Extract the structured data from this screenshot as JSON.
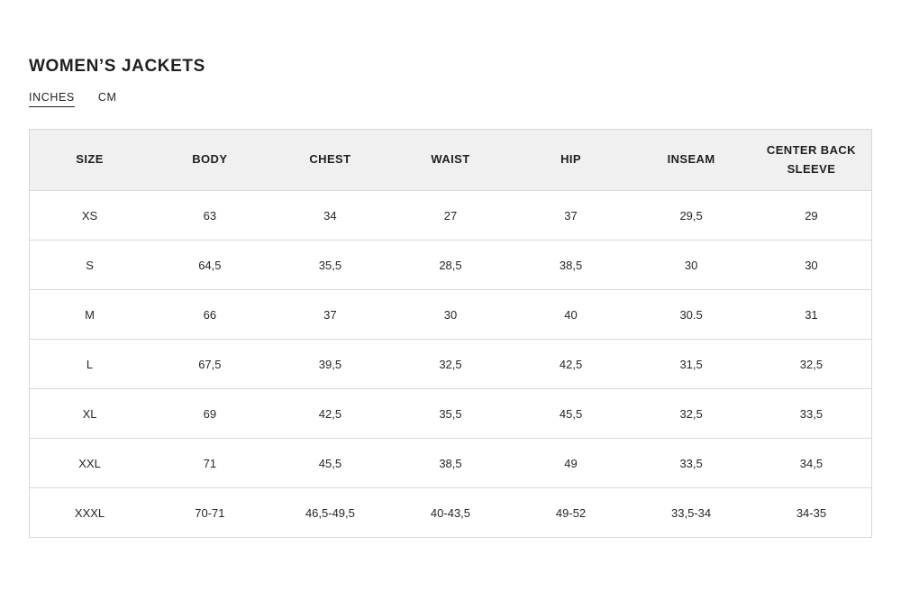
{
  "header": {
    "title": "WOMEN’S JACKETS"
  },
  "tabs": {
    "active": "INCHES",
    "items": [
      {
        "label": "INCHES"
      },
      {
        "label": "CM"
      }
    ]
  },
  "table": {
    "columns": [
      "SIZE",
      "BODY",
      "CHEST",
      "WAIST",
      "HIP",
      "INSEAM",
      "CENTER BACK SLEEVE"
    ],
    "rows": [
      {
        "cells": [
          "XS",
          "63",
          "34",
          "27",
          "37",
          "29,5",
          "29"
        ]
      },
      {
        "cells": [
          "S",
          "64,5",
          "35,5",
          "28,5",
          "38,5",
          "30",
          "30"
        ]
      },
      {
        "cells": [
          "M",
          "66",
          "37",
          "30",
          "40",
          "30.5",
          "31"
        ]
      },
      {
        "cells": [
          "L",
          "67,5",
          "39,5",
          "32,5",
          "42,5",
          "31,5",
          "32,5"
        ]
      },
      {
        "cells": [
          "XL",
          "69",
          "42,5",
          "35,5",
          "45,5",
          "32,5",
          "33,5"
        ]
      },
      {
        "cells": [
          "XXL",
          "71",
          "45,5",
          "38,5",
          "49",
          "33,5",
          "34,5"
        ]
      },
      {
        "cells": [
          "XXXL",
          "70-71",
          "46,5-49,5",
          "40-43,5",
          "49-52",
          "33,5-34",
          "34-35"
        ]
      }
    ]
  },
  "colors": {
    "header_background": "#f0f0f0",
    "border": "#d8d8d8",
    "text": "#262626"
  }
}
